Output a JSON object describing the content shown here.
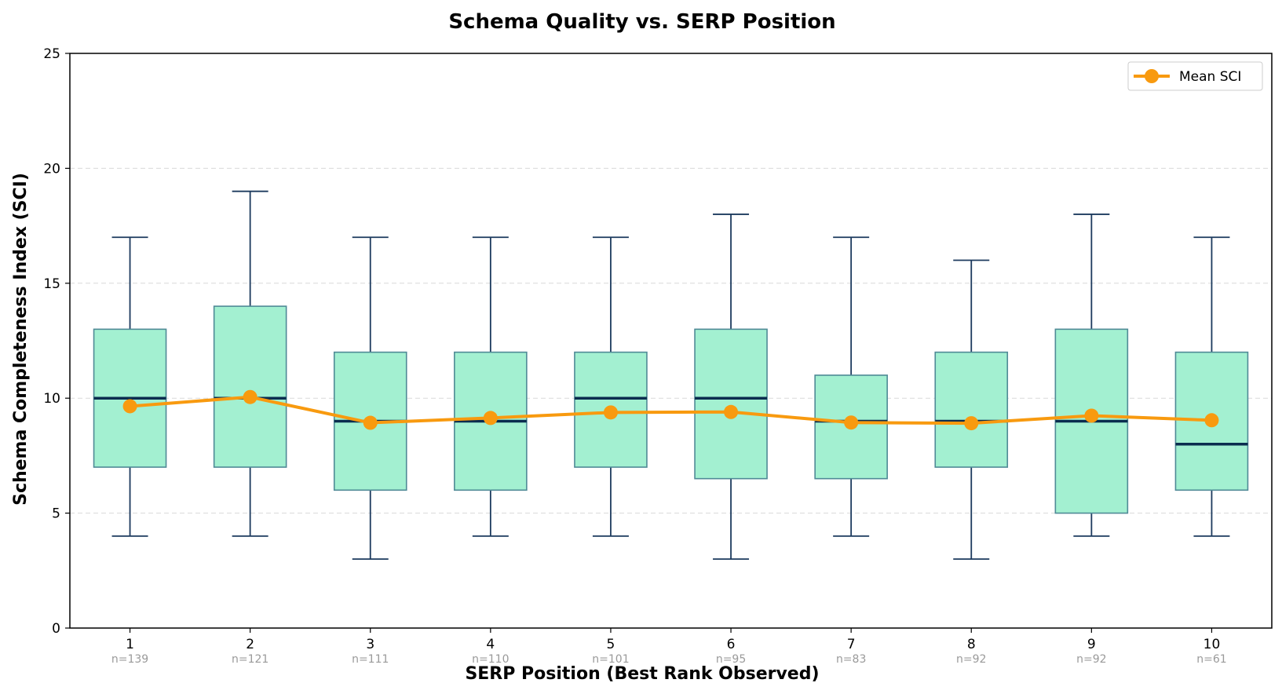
{
  "chart_data": {
    "type": "box",
    "title": "Schema Quality vs. SERP Position",
    "xlabel": "SERP Position (Best Rank Observed)",
    "ylabel": "Schema Completeness Index (SCI)",
    "ylim": [
      0,
      25
    ],
    "yticks": [
      "0",
      "5",
      "10",
      "15",
      "20",
      "25"
    ],
    "grid": "horizontal dashed",
    "legend_position": "top-right",
    "legend": [
      {
        "label": "Mean SCI"
      }
    ],
    "categories": [
      "1",
      "2",
      "3",
      "4",
      "5",
      "6",
      "7",
      "8",
      "9",
      "10"
    ],
    "counts": [
      "n=139",
      "n=121",
      "n=111",
      "n=110",
      "n=101",
      "n=95",
      "n=83",
      "n=92",
      "n=92",
      "n=61"
    ],
    "boxes": [
      {
        "whisker_low": 4,
        "q1": 7,
        "median": 10,
        "q3": 13,
        "whisker_high": 17
      },
      {
        "whisker_low": 4,
        "q1": 7,
        "median": 10,
        "q3": 14,
        "whisker_high": 19
      },
      {
        "whisker_low": 3,
        "q1": 6,
        "median": 9,
        "q3": 12,
        "whisker_high": 17
      },
      {
        "whisker_low": 4,
        "q1": 6,
        "median": 9,
        "q3": 12,
        "whisker_high": 17
      },
      {
        "whisker_low": 4,
        "q1": 7,
        "median": 10,
        "q3": 12,
        "whisker_high": 17
      },
      {
        "whisker_low": 3,
        "q1": 6.5,
        "median": 10,
        "q3": 13,
        "whisker_high": 18
      },
      {
        "whisker_low": 4,
        "q1": 6.5,
        "median": 9,
        "q3": 11,
        "whisker_high": 17
      },
      {
        "whisker_low": 3,
        "q1": 7,
        "median": 9,
        "q3": 12,
        "whisker_high": 16
      },
      {
        "whisker_low": 4,
        "q1": 5,
        "median": 9,
        "q3": 13,
        "whisker_high": 18
      },
      {
        "whisker_low": 4,
        "q1": 6,
        "median": 8,
        "q3": 12,
        "whisker_high": 17
      }
    ],
    "mean_series": {
      "name": "Mean SCI",
      "values": [
        9.65,
        10.05,
        8.93,
        9.14,
        9.38,
        9.4,
        8.94,
        8.91,
        9.24,
        9.04
      ]
    },
    "colors": {
      "box_fill": "#a3f0d1",
      "box_edge": "#4f8a96",
      "whisker": "#1c3a5e",
      "median": "#0b2d4f",
      "mean_line": "#f89a0f",
      "grid": "#d9d9d9",
      "count_text": "#9a9a9a"
    }
  }
}
